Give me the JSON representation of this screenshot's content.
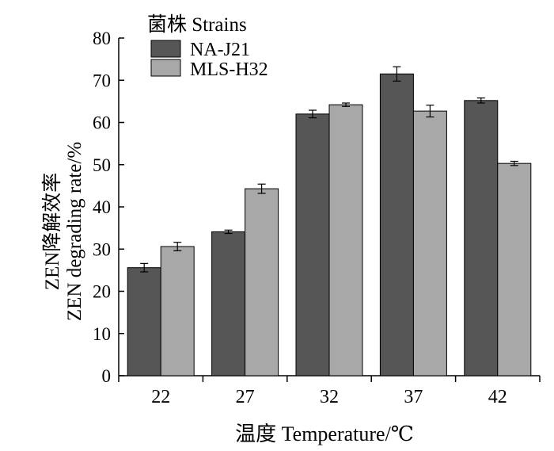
{
  "chart_data": {
    "type": "bar",
    "categories": [
      "22",
      "27",
      "32",
      "37",
      "42"
    ],
    "series": [
      {
        "name": "NA-J21",
        "values": [
          25.6,
          34.1,
          62.0,
          71.5,
          65.2
        ],
        "errors": [
          1.0,
          0.4,
          0.9,
          1.7,
          0.6
        ],
        "color": "#565656"
      },
      {
        "name": "MLS-H32",
        "values": [
          30.6,
          44.3,
          64.2,
          62.7,
          50.3
        ],
        "errors": [
          1.0,
          1.1,
          0.4,
          1.4,
          0.5
        ],
        "color": "#a8a8a8"
      }
    ],
    "legend_title": "菌株 Strains",
    "ylabel_cn": "ZEN降解效率",
    "ylabel_en": "ZEN degrading rate/%",
    "xlabel": "温度  Temperature/℃",
    "yticks": [
      0,
      10,
      20,
      30,
      40,
      50,
      60,
      70,
      80
    ],
    "ylim": [
      0,
      80
    ],
    "grid": false,
    "legend_position": "top-left"
  }
}
